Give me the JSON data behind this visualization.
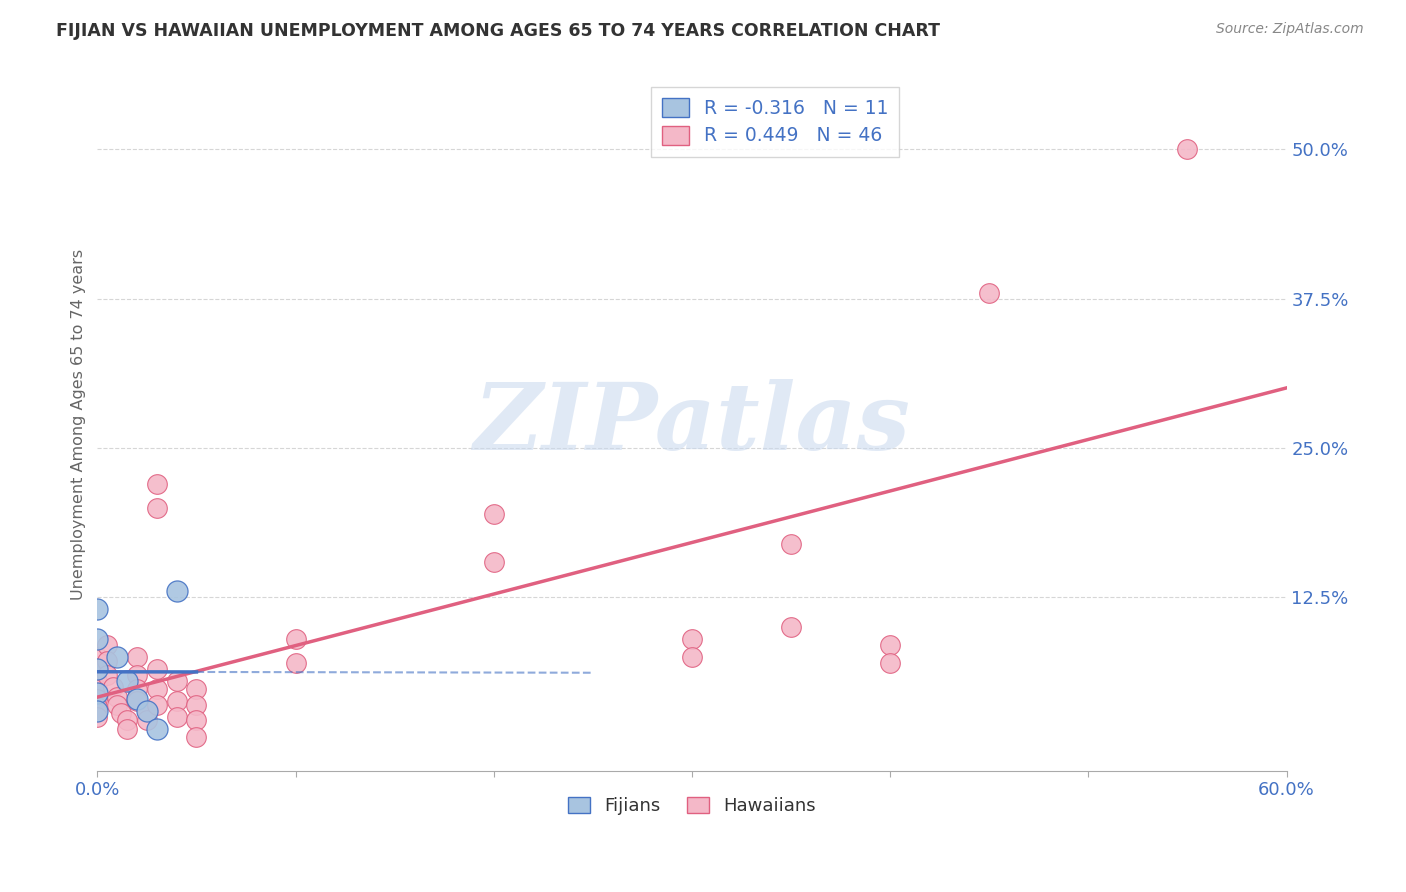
{
  "title": "FIJIAN VS HAWAIIAN UNEMPLOYMENT AMONG AGES 65 TO 74 YEARS CORRELATION CHART",
  "source": "Source: ZipAtlas.com",
  "ylabel": "Unemployment Among Ages 65 to 74 years",
  "xlim": [
    0.0,
    0.6
  ],
  "ylim": [
    -0.02,
    0.56
  ],
  "ytick_positions": [
    0.0,
    0.125,
    0.25,
    0.375,
    0.5
  ],
  "ytick_labels": [
    "",
    "12.5%",
    "25.0%",
    "37.5%",
    "50.0%"
  ],
  "xtick_positions": [
    0.0,
    0.1,
    0.2,
    0.3,
    0.4,
    0.5,
    0.6
  ],
  "xtick_labels": [
    "0.0%",
    "",
    "",
    "",
    "",
    "",
    "60.0%"
  ],
  "fijian_R": -0.316,
  "fijian_N": 11,
  "hawaiian_R": 0.449,
  "hawaiian_N": 46,
  "fijian_color": "#a8c4e0",
  "hawaiian_color": "#f4b8c8",
  "fijian_edge_color": "#4472c4",
  "hawaiian_edge_color": "#e06080",
  "fijian_line_color": "#4472c4",
  "hawaiian_line_color": "#e06080",
  "fijian_scatter": [
    [
      0.0,
      0.115
    ],
    [
      0.0,
      0.09
    ],
    [
      0.0,
      0.065
    ],
    [
      0.0,
      0.045
    ],
    [
      0.0,
      0.03
    ],
    [
      0.01,
      0.075
    ],
    [
      0.015,
      0.055
    ],
    [
      0.02,
      0.04
    ],
    [
      0.025,
      0.03
    ],
    [
      0.03,
      0.015
    ],
    [
      0.04,
      0.13
    ]
  ],
  "hawaiian_scatter": [
    [
      0.0,
      0.075
    ],
    [
      0.0,
      0.065
    ],
    [
      0.0,
      0.055
    ],
    [
      0.0,
      0.048
    ],
    [
      0.0,
      0.04
    ],
    [
      0.0,
      0.033
    ],
    [
      0.0,
      0.025
    ],
    [
      0.005,
      0.085
    ],
    [
      0.005,
      0.072
    ],
    [
      0.005,
      0.06
    ],
    [
      0.008,
      0.05
    ],
    [
      0.01,
      0.042
    ],
    [
      0.01,
      0.035
    ],
    [
      0.012,
      0.028
    ],
    [
      0.015,
      0.022
    ],
    [
      0.015,
      0.015
    ],
    [
      0.02,
      0.075
    ],
    [
      0.02,
      0.06
    ],
    [
      0.02,
      0.048
    ],
    [
      0.02,
      0.038
    ],
    [
      0.025,
      0.03
    ],
    [
      0.025,
      0.022
    ],
    [
      0.03,
      0.22
    ],
    [
      0.03,
      0.2
    ],
    [
      0.03,
      0.065
    ],
    [
      0.03,
      0.048
    ],
    [
      0.03,
      0.035
    ],
    [
      0.04,
      0.055
    ],
    [
      0.04,
      0.038
    ],
    [
      0.04,
      0.025
    ],
    [
      0.05,
      0.048
    ],
    [
      0.05,
      0.035
    ],
    [
      0.05,
      0.022
    ],
    [
      0.05,
      0.008
    ],
    [
      0.1,
      0.09
    ],
    [
      0.1,
      0.07
    ],
    [
      0.2,
      0.195
    ],
    [
      0.2,
      0.155
    ],
    [
      0.3,
      0.09
    ],
    [
      0.3,
      0.075
    ],
    [
      0.35,
      0.17
    ],
    [
      0.35,
      0.1
    ],
    [
      0.4,
      0.085
    ],
    [
      0.4,
      0.07
    ],
    [
      0.45,
      0.38
    ],
    [
      0.55,
      0.5
    ]
  ],
  "watermark_text": "ZIPatlas",
  "watermark_color": "#c8d8ee",
  "background_color": "#ffffff",
  "grid_color": "#cccccc",
  "title_color": "#333333",
  "axis_label_color": "#666666",
  "tick_label_color": "#4472c4",
  "legend_entry_color": "#4472c4"
}
